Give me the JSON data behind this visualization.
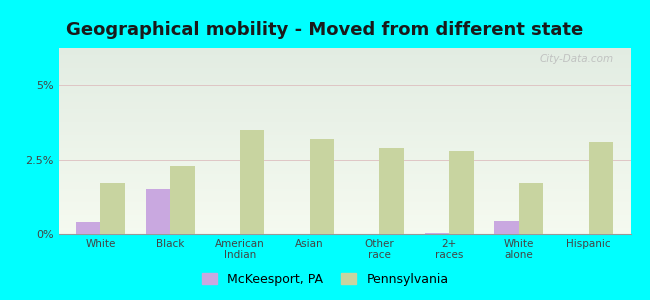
{
  "title": "Geographical mobility - Moved from different state",
  "categories": [
    "White",
    "Black",
    "American\nIndian",
    "Asian",
    "Other\nrace",
    "2+\nraces",
    "White\nalone",
    "Hispanic"
  ],
  "mckeesport_values": [
    0.4,
    1.5,
    0.0,
    0.0,
    0.0,
    0.05,
    0.45,
    0.0
  ],
  "pennsylvania_values": [
    1.7,
    2.3,
    3.5,
    3.2,
    2.9,
    2.8,
    1.7,
    3.1
  ],
  "mckeesport_color": "#c9a8e0",
  "pennsylvania_color": "#c8d4a0",
  "ylim": [
    0,
    6.25
  ],
  "yticks": [
    0,
    2.5,
    5.0
  ],
  "ytick_labels": [
    "0%",
    "2.5%",
    "5%"
  ],
  "background_color": "#00ffff",
  "bar_width": 0.35,
  "title_fontsize": 13,
  "legend_labels": [
    "McKeesport, PA",
    "Pennsylvania"
  ],
  "watermark": "City-Data.com"
}
